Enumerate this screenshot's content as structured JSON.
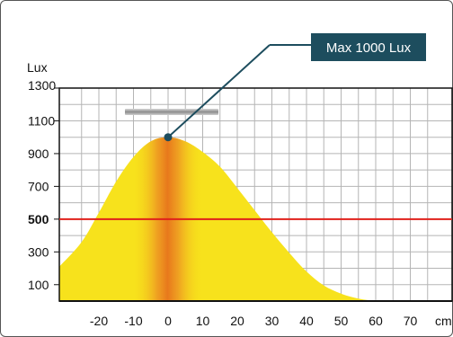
{
  "chart_data": {
    "type": "area",
    "ylabel": "Lux",
    "xunit": "cm",
    "y_ticks": [
      "1300",
      "1100",
      "900",
      "700",
      "500",
      "300",
      "100"
    ],
    "y_tick_values": [
      1300,
      1100,
      900,
      700,
      500,
      300,
      100
    ],
    "x_ticks": [
      "-20",
      "-10",
      "0",
      "10",
      "20",
      "30",
      "40",
      "50",
      "60",
      "70"
    ],
    "x_tick_values": [
      -20,
      -10,
      0,
      10,
      20,
      30,
      40,
      50,
      60,
      70
    ],
    "xlim": [
      -30,
      77
    ],
    "ylim": [
      0,
      1300
    ],
    "grid": true,
    "series": [
      {
        "x": [
          -30,
          -25,
          -20,
          -15,
          -10,
          -5,
          0,
          5,
          10,
          15,
          20,
          25,
          30,
          35,
          40,
          45,
          50,
          55,
          60
        ],
        "y": [
          210,
          360,
          540,
          730,
          880,
          975,
          1000,
          975,
          910,
          820,
          690,
          555,
          420,
          295,
          180,
          95,
          45,
          15,
          0
        ]
      }
    ],
    "reference_line": {
      "value": 500,
      "label": "500",
      "color": "#e0201b"
    },
    "annotation": {
      "text": "Max 1000 Lux",
      "x": 0,
      "y": 1000,
      "bg": "#1d4d5e"
    },
    "colors": {
      "fill": "#f7e21c",
      "hotspot": "#e8821e",
      "grid": "#b5b5b5",
      "fixture": "#9a9a9a"
    }
  }
}
